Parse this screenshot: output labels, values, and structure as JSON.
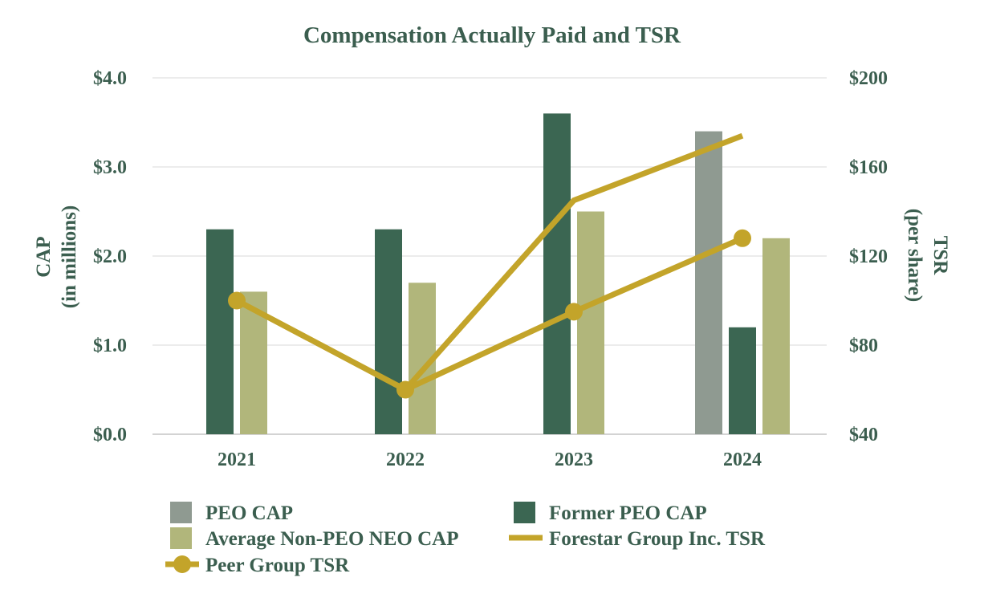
{
  "chart_data": {
    "type": "bar",
    "title": "Compensation Actually Paid and TSR",
    "categories": [
      "2021",
      "2022",
      "2023",
      "2024"
    ],
    "left_axis": {
      "label_line1": "CAP",
      "label_line2": "(in millions)",
      "ylim": [
        0,
        4
      ],
      "ticks": [
        "$0.0",
        "$1.0",
        "$2.0",
        "$3.0",
        "$4.0"
      ],
      "tick_values": [
        0,
        1,
        2,
        3,
        4
      ]
    },
    "right_axis": {
      "label_line1": "TSR",
      "label_line2": "(per share)",
      "ylim": [
        40,
        200
      ],
      "ticks": [
        "$40",
        "$80",
        "$120",
        "$160",
        "$200"
      ],
      "tick_values": [
        40,
        80,
        120,
        160,
        200
      ]
    },
    "grid": true,
    "series": [
      {
        "name": "PEO CAP",
        "kind": "bar",
        "axis": "left",
        "color": "#8f9a91",
        "values": [
          null,
          null,
          null,
          3.4
        ]
      },
      {
        "name": "Former PEO CAP",
        "kind": "bar",
        "axis": "left",
        "color": "#3b6652",
        "values": [
          2.3,
          2.3,
          3.6,
          1.2
        ]
      },
      {
        "name": "Average Non-PEO NEO CAP",
        "kind": "bar",
        "axis": "left",
        "color": "#b1b67b",
        "values": [
          1.6,
          1.7,
          2.5,
          2.2
        ]
      },
      {
        "name": "Forestar Group Inc. TSR",
        "kind": "line",
        "axis": "right",
        "color": "#c3a42a",
        "values": [
          100,
          60,
          145,
          174
        ]
      },
      {
        "name": "Peer Group TSR",
        "kind": "line-marker",
        "axis": "right",
        "color": "#c3a42a",
        "values": [
          100,
          60,
          95,
          128
        ]
      }
    ],
    "legend": [
      {
        "label": "PEO CAP",
        "symbol": "square",
        "color": "#8f9a91"
      },
      {
        "label": "Former PEO CAP",
        "symbol": "square",
        "color": "#3b6652"
      },
      {
        "label": "Average Non-PEO NEO CAP",
        "symbol": "square",
        "color": "#b1b67b"
      },
      {
        "label": "Forestar Group Inc. TSR",
        "symbol": "line",
        "color": "#c3a42a"
      },
      {
        "label": "Peer Group TSR",
        "symbol": "line-marker",
        "color": "#c3a42a"
      }
    ],
    "legend_position": "bottom"
  }
}
